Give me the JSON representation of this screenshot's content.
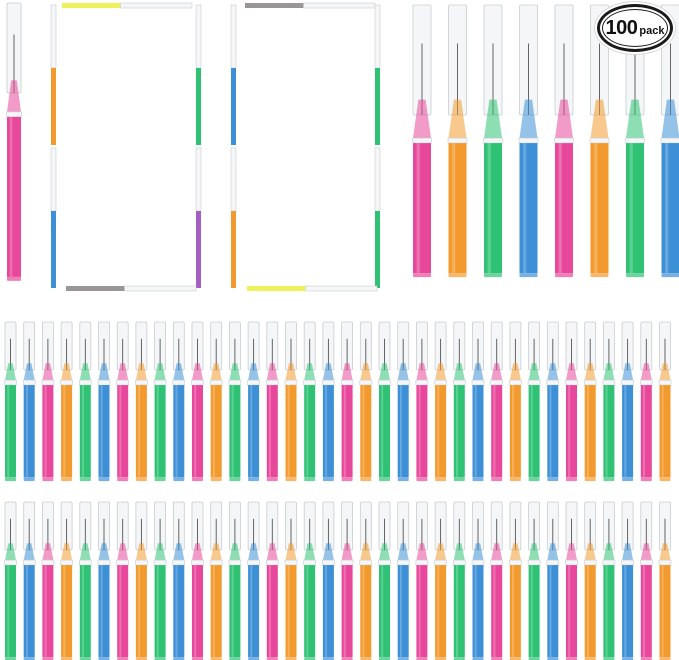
{
  "badge": {
    "count": "100",
    "word": "pack"
  },
  "colors": {
    "pink": "#e8489b",
    "orange": "#f39a2e",
    "green": "#2fc274",
    "blue": "#3d8fd6",
    "purple": "#a55ec4",
    "gray": "#9a9596",
    "yellow": "#eef25a",
    "cap": "#f4f6f7",
    "cap_edge": "#c7cdd1",
    "tip_tint": "#f7dbe6"
  },
  "rows": {
    "row1_pattern": [
      "green",
      "blue",
      "pink",
      "orange",
      "green",
      "blue",
      "pink",
      "orange",
      "green",
      "blue",
      "pink",
      "orange",
      "green",
      "blue",
      "pink",
      "orange",
      "green",
      "blue",
      "pink",
      "orange",
      "green",
      "blue",
      "pink",
      "orange",
      "green",
      "blue",
      "pink",
      "orange",
      "green",
      "blue",
      "pink",
      "orange",
      "green",
      "blue",
      "pink",
      "orange"
    ],
    "row2_pattern": [
      "green",
      "blue",
      "pink",
      "orange",
      "green",
      "blue",
      "pink",
      "orange",
      "green",
      "blue",
      "pink",
      "orange",
      "green",
      "blue",
      "pink",
      "orange",
      "green",
      "blue",
      "pink",
      "orange",
      "green",
      "blue",
      "pink",
      "orange",
      "green",
      "blue",
      "pink",
      "orange",
      "green",
      "blue",
      "pink",
      "orange",
      "green",
      "blue",
      "pink",
      "orange"
    ],
    "top_right_pattern": [
      "pink",
      "orange",
      "green",
      "blue",
      "pink",
      "orange",
      "green",
      "blue"
    ]
  }
}
